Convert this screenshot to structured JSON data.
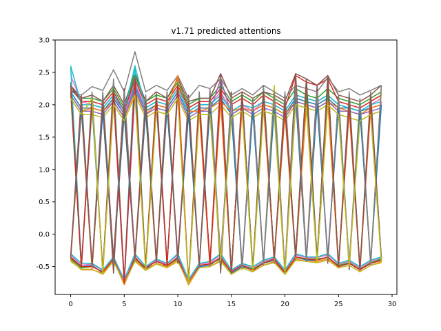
{
  "chart_data": {
    "type": "line",
    "title": "v1.71 predicted attentions",
    "xlabel": "",
    "ylabel": "",
    "xlim": [
      -1.45,
      30.45
    ],
    "ylim": [
      -0.93,
      3.0
    ],
    "xticks": [
      0,
      5,
      10,
      15,
      20,
      25,
      30
    ],
    "yticks": [
      -0.5,
      0.0,
      0.5,
      1.0,
      1.5,
      2.0,
      2.5,
      3.0
    ],
    "xtick_labels": [
      "0",
      "5",
      "10",
      "15",
      "20",
      "25",
      "30"
    ],
    "ytick_labels": [
      "-0.5",
      "0.0",
      "0.5",
      "1.0",
      "1.5",
      "2.0",
      "2.5",
      "3.0"
    ],
    "grid": false,
    "legend": "none",
    "x": [
      0,
      1,
      2,
      3,
      4,
      5,
      6,
      7,
      8,
      9,
      10,
      11,
      12,
      13,
      14,
      15,
      16,
      17,
      18,
      19,
      20,
      21,
      22,
      23,
      24,
      25,
      26,
      27,
      28,
      29
    ],
    "series": [
      {
        "color": "#1f77b4",
        "values": [
          2.2,
          1.95,
          1.95,
          1.9,
          2.1,
          1.85,
          2.3,
          1.9,
          2.0,
          1.95,
          2.2,
          1.85,
          1.95,
          1.95,
          2.1,
          1.85,
          1.95,
          1.9,
          2.0,
          1.95,
          1.85,
          2.1,
          2.05,
          2.0,
          2.1,
          1.95,
          1.95,
          1.9,
          1.95,
          2.0
        ]
      },
      {
        "color": "#ff7f0e",
        "values": [
          2.15,
          1.9,
          1.95,
          1.9,
          2.05,
          1.8,
          2.2,
          1.85,
          2.0,
          1.95,
          2.45,
          1.9,
          1.9,
          1.95,
          2.05,
          1.9,
          1.95,
          1.9,
          2.0,
          1.95,
          1.85,
          2.05,
          2.0,
          1.95,
          2.05,
          1.95,
          1.9,
          1.85,
          1.95,
          2.0
        ]
      },
      {
        "color": "#2ca02c",
        "values": [
          2.25,
          2.1,
          2.1,
          2.05,
          2.25,
          1.95,
          2.45,
          2.05,
          2.15,
          2.1,
          2.35,
          2.0,
          2.1,
          2.1,
          2.3,
          2.05,
          2.15,
          2.05,
          2.2,
          2.1,
          2.0,
          2.25,
          2.15,
          2.1,
          2.25,
          2.1,
          2.05,
          2.0,
          2.1,
          2.2
        ]
      },
      {
        "color": "#d62728",
        "values": [
          2.3,
          2.05,
          2.05,
          2.0,
          2.2,
          1.9,
          2.4,
          2.0,
          2.1,
          2.05,
          2.3,
          1.95,
          2.05,
          2.05,
          2.25,
          2.0,
          2.1,
          2.0,
          2.15,
          2.05,
          1.95,
          2.45,
          2.35,
          2.3,
          2.4,
          2.05,
          2.0,
          1.95,
          2.05,
          2.15
        ]
      },
      {
        "color": "#9467bd",
        "values": [
          2.15,
          1.9,
          1.9,
          1.85,
          2.05,
          1.8,
          2.25,
          1.85,
          1.95,
          1.9,
          2.15,
          1.8,
          1.9,
          1.9,
          2.4,
          1.85,
          1.95,
          1.85,
          1.95,
          1.9,
          1.8,
          2.05,
          2.0,
          1.95,
          2.05,
          1.9,
          1.9,
          1.85,
          1.9,
          1.95
        ]
      },
      {
        "color": "#8c564b",
        "values": [
          2.3,
          2.1,
          2.15,
          2.05,
          2.3,
          2.0,
          2.5,
          2.05,
          2.2,
          2.1,
          2.4,
          2.05,
          2.1,
          2.1,
          2.48,
          2.1,
          2.2,
          2.1,
          2.2,
          2.15,
          2.05,
          2.48,
          2.4,
          2.3,
          2.45,
          2.15,
          2.1,
          2.05,
          2.15,
          2.3
        ]
      },
      {
        "color": "#e377c2",
        "values": [
          2.45,
          2.05,
          2.0,
          1.95,
          2.15,
          1.85,
          2.35,
          1.95,
          2.05,
          2.0,
          2.25,
          1.9,
          2.0,
          2.0,
          2.2,
          1.9,
          2.0,
          1.9,
          2.05,
          2.0,
          1.9,
          2.15,
          2.1,
          2.05,
          2.15,
          2.0,
          1.95,
          1.9,
          2.0,
          2.1
        ]
      },
      {
        "color": "#7f7f7f",
        "values": [
          2.2,
          2.15,
          2.28,
          2.22,
          2.54,
          2.2,
          2.82,
          2.2,
          2.3,
          2.22,
          2.45,
          2.1,
          2.3,
          2.25,
          2.4,
          2.15,
          2.25,
          2.15,
          2.3,
          2.2,
          2.1,
          2.3,
          2.25,
          2.2,
          2.42,
          2.2,
          2.25,
          2.15,
          2.22,
          2.3
        ]
      },
      {
        "color": "#bcbd22",
        "values": [
          2.1,
          1.85,
          1.85,
          1.8,
          2.0,
          1.75,
          2.15,
          1.8,
          1.9,
          1.85,
          2.1,
          1.75,
          1.85,
          1.85,
          2.0,
          1.8,
          1.9,
          1.8,
          1.9,
          1.85,
          1.75,
          2.0,
          1.95,
          1.9,
          2.0,
          1.85,
          1.8,
          1.75,
          1.85,
          1.9
        ]
      },
      {
        "color": "#17becf",
        "values": [
          2.6,
          2.0,
          2.0,
          1.95,
          2.15,
          1.9,
          2.6,
          1.95,
          2.05,
          2.0,
          2.25,
          1.9,
          2.0,
          2.0,
          2.15,
          1.9,
          2.0,
          1.95,
          2.05,
          2.0,
          1.9,
          2.15,
          2.1,
          2.05,
          2.15,
          2.0,
          1.95,
          1.9,
          2.0,
          2.05
        ]
      },
      {
        "color": "#1f77b4",
        "values": [
          -0.35,
          -0.5,
          -0.48,
          -0.6,
          -0.4,
          -0.75,
          -0.35,
          -0.55,
          -0.4,
          -0.5,
          -0.35,
          -0.75,
          -0.5,
          -0.48,
          -0.35,
          -0.6,
          -0.5,
          -0.55,
          -0.45,
          -0.4,
          -0.6,
          -0.35,
          -0.4,
          -0.4,
          -0.35,
          -0.5,
          -0.45,
          -0.55,
          -0.45,
          -0.4
        ]
      },
      {
        "color": "#ff7f0e",
        "values": [
          -0.4,
          -0.55,
          -0.55,
          -0.6,
          -0.4,
          -0.78,
          -0.4,
          -0.55,
          -0.45,
          -0.5,
          -0.4,
          -0.78,
          -0.52,
          -0.5,
          -0.4,
          -0.62,
          -0.52,
          -0.58,
          -0.48,
          -0.42,
          -0.62,
          -0.38,
          -0.42,
          -0.42,
          -0.38,
          -0.52,
          -0.48,
          -0.58,
          -0.48,
          -0.42
        ]
      },
      {
        "color": "#2ca02c",
        "values": [
          -0.38,
          -0.52,
          -0.5,
          -0.58,
          -0.38,
          -0.74,
          -0.38,
          -0.52,
          -0.42,
          -0.48,
          -0.38,
          -0.74,
          -0.48,
          -0.46,
          -0.38,
          -0.58,
          -0.48,
          -0.54,
          -0.44,
          -0.38,
          -0.58,
          -0.36,
          -0.38,
          -0.38,
          -0.36,
          -0.48,
          -0.44,
          -0.54,
          -0.44,
          -0.38
        ]
      },
      {
        "color": "#d62728",
        "values": [
          -0.36,
          -0.5,
          -0.5,
          -0.58,
          -0.38,
          -0.75,
          -0.36,
          -0.52,
          -0.42,
          -0.48,
          -0.36,
          -0.75,
          -0.48,
          -0.46,
          -0.36,
          -0.58,
          -0.48,
          -0.56,
          -0.45,
          -0.38,
          -0.6,
          -0.35,
          -0.38,
          -0.4,
          -0.35,
          -0.5,
          -0.45,
          -0.55,
          -0.45,
          -0.4
        ]
      },
      {
        "color": "#e377c2",
        "values": [
          -0.32,
          -0.48,
          -0.46,
          -0.56,
          -0.35,
          -0.72,
          -0.32,
          -0.5,
          -0.4,
          -0.46,
          -0.32,
          -0.72,
          -0.46,
          -0.44,
          -0.32,
          -0.56,
          -0.46,
          -0.52,
          -0.42,
          -0.36,
          -0.56,
          -0.32,
          -0.36,
          -0.36,
          -0.32,
          -0.46,
          -0.42,
          -0.52,
          -0.42,
          -0.36
        ]
      },
      {
        "color": "#bcbd22",
        "values": [
          -0.42,
          -0.54,
          -0.54,
          -0.62,
          -0.42,
          -0.76,
          -0.42,
          -0.56,
          -0.46,
          -0.52,
          -0.42,
          -0.76,
          -0.52,
          -0.5,
          -0.42,
          -0.62,
          -0.52,
          -0.58,
          -0.48,
          -0.44,
          -0.62,
          -0.4,
          -0.42,
          -0.44,
          -0.4,
          -0.52,
          -0.48,
          -0.58,
          -0.48,
          -0.44
        ]
      },
      {
        "color": "#17becf",
        "values": [
          -0.3,
          -0.45,
          -0.45,
          -0.55,
          -0.35,
          -0.7,
          -0.3,
          -0.5,
          -0.38,
          -0.45,
          -0.3,
          -0.7,
          -0.45,
          -0.42,
          -0.3,
          -0.55,
          -0.45,
          -0.5,
          -0.4,
          -0.35,
          -0.55,
          -0.3,
          -0.35,
          -0.35,
          -0.3,
          -0.45,
          -0.4,
          -0.5,
          -0.4,
          -0.35
        ]
      },
      {
        "color": "#7f7f7f",
        "values": [
          2.35,
          -0.5,
          2.2,
          -0.6,
          2.4,
          -0.7,
          2.5,
          -0.5,
          2.2,
          -0.45,
          2.3,
          -0.75,
          2.2,
          -0.5,
          2.45,
          -0.6,
          2.2,
          -0.55,
          2.3,
          -0.45,
          2.2,
          -0.4,
          2.2,
          -0.4,
          2.45,
          -0.5,
          2.2,
          -0.55,
          2.2,
          -0.4
        ]
      },
      {
        "color": "#8c564b",
        "values": [
          2.25,
          2.05,
          -0.5,
          2.1,
          -0.6,
          2.25,
          -0.35,
          2.15,
          -0.4,
          2.2,
          -0.45,
          2.15,
          -0.5,
          2.2,
          -0.6,
          2.2,
          -0.55,
          2.1,
          -0.45,
          2.25,
          -0.55,
          2.48,
          -0.35,
          2.3,
          -0.45,
          2.15,
          -0.55,
          2.05,
          -0.45,
          2.3
        ]
      },
      {
        "color": "#bcbd22",
        "values": [
          -0.4,
          2.0,
          -0.55,
          2.05,
          -0.38,
          2.2,
          -0.4,
          2.05,
          -0.45,
          2.1,
          -0.35,
          2.05,
          -0.5,
          2.1,
          -0.38,
          2.05,
          -0.55,
          2.0,
          -0.42,
          2.3,
          -0.6,
          2.15,
          -0.4,
          2.1,
          -0.38,
          2.05,
          -0.5,
          2.0,
          -0.42,
          2.2
        ]
      },
      {
        "color": "#9467bd",
        "values": [
          2.2,
          -0.5,
          2.0,
          -0.55,
          2.1,
          -0.75,
          2.2,
          -0.5,
          2.0,
          -0.45,
          2.2,
          -0.75,
          2.1,
          -0.45,
          2.4,
          -0.6,
          2.0,
          -0.5,
          2.0,
          -0.4,
          2.0,
          -0.35,
          2.0,
          -0.4,
          2.15,
          -0.5,
          2.0,
          -0.55,
          2.0,
          -0.4
        ]
      },
      {
        "color": "#17becf",
        "values": [
          2.6,
          -0.45,
          1.95,
          -0.55,
          2.15,
          -0.7,
          2.6,
          -0.5,
          2.0,
          -0.45,
          2.2,
          -0.72,
          2.0,
          -0.42,
          2.15,
          -0.55,
          2.0,
          -0.5,
          2.05,
          -0.35,
          1.9,
          -0.3,
          2.4,
          -0.35,
          2.15,
          -0.45,
          1.95,
          -0.5,
          2.0,
          -0.35
        ]
      },
      {
        "color": "#e377c2",
        "values": [
          -0.32,
          2.0,
          -0.46,
          2.0,
          -0.35,
          2.15,
          -0.32,
          2.0,
          -0.4,
          2.05,
          -0.32,
          2.05,
          -0.46,
          2.0,
          -0.32,
          2.0,
          -0.46,
          1.95,
          -0.42,
          2.05,
          -0.56,
          2.15,
          -0.36,
          2.05,
          -0.32,
          2.0,
          -0.42,
          1.95,
          -0.42,
          2.05
        ]
      },
      {
        "color": "#2ca02c",
        "values": [
          2.2,
          -0.52,
          2.1,
          -0.58,
          2.25,
          -0.74,
          2.45,
          -0.52,
          2.15,
          -0.48,
          2.35,
          -0.74,
          2.1,
          -0.46,
          2.3,
          -0.58,
          2.15,
          -0.54,
          2.2,
          -0.38,
          2.0,
          -0.36,
          2.15,
          -0.38,
          2.25,
          -0.48,
          2.05,
          -0.54,
          2.1,
          -0.38
        ]
      },
      {
        "color": "#ff7f0e",
        "values": [
          -0.4,
          1.9,
          -0.55,
          1.9,
          -0.4,
          2.0,
          -0.4,
          1.9,
          -0.45,
          1.95,
          2.45,
          -0.78,
          1.9,
          -0.5,
          2.05,
          -0.62,
          1.95,
          -0.58,
          2.0,
          -0.42,
          1.85,
          -0.38,
          2.0,
          -0.42,
          2.05,
          -0.52,
          1.9,
          -0.58,
          1.95,
          -0.42
        ]
      },
      {
        "color": "#d62728",
        "values": [
          2.3,
          -0.5,
          2.05,
          -0.58,
          2.2,
          -0.75,
          2.4,
          -0.52,
          2.1,
          -0.48,
          2.3,
          -0.75,
          2.05,
          -0.46,
          2.25,
          -0.58,
          2.1,
          -0.56,
          2.15,
          -0.38,
          1.95,
          -0.35,
          2.35,
          -0.4,
          2.4,
          -0.5,
          2.0,
          -0.55,
          2.05,
          -0.4
        ]
      },
      {
        "color": "#1f77b4",
        "values": [
          -0.35,
          1.95,
          -0.48,
          1.9,
          -0.4,
          1.85,
          -0.35,
          1.9,
          -0.4,
          1.95,
          -0.35,
          1.85,
          -0.5,
          1.95,
          -0.35,
          1.85,
          -0.5,
          1.9,
          -0.45,
          1.95,
          -0.6,
          2.1,
          -0.4,
          2.0,
          -0.35,
          1.95,
          -0.45,
          1.9,
          -0.45,
          2.0
        ]
      },
      {
        "color": "#7f7f7f",
        "values": [
          -0.38,
          2.1,
          -0.5,
          2.2,
          -0.42,
          2.2,
          -0.4,
          2.15,
          -0.45,
          2.2,
          -0.4,
          2.1,
          -0.52,
          2.25,
          -0.42,
          2.15,
          -0.52,
          2.1,
          -0.48,
          2.2,
          -0.6,
          2.3,
          -0.42,
          2.2,
          -0.4,
          2.15,
          -0.48,
          2.1,
          -0.48,
          2.3
        ]
      },
      {
        "color": "#8c564b",
        "values": [
          -0.36,
          2.15,
          -0.5,
          2.05,
          -0.38,
          2.0,
          -0.36,
          2.05,
          -0.42,
          2.1,
          -0.36,
          2.05,
          -0.48,
          2.1,
          2.48,
          -0.6,
          2.2,
          -0.56,
          2.2,
          -0.38,
          2.05,
          -0.35,
          2.4,
          -0.4,
          2.45,
          -0.5,
          2.1,
          -0.55,
          2.15,
          -0.4
        ]
      },
      {
        "color": "#bcbd22",
        "values": [
          2.1,
          1.85,
          2.1,
          -0.62,
          2.0,
          1.75,
          2.15,
          -0.56,
          1.9,
          1.85,
          2.1,
          -0.76,
          1.85,
          1.85,
          -0.42,
          1.8,
          1.9,
          -0.58,
          1.9,
          1.85,
          -0.62,
          2.0,
          1.95,
          -0.44,
          2.0,
          1.85,
          -0.48,
          1.75,
          1.85,
          -0.44
        ]
      }
    ]
  }
}
